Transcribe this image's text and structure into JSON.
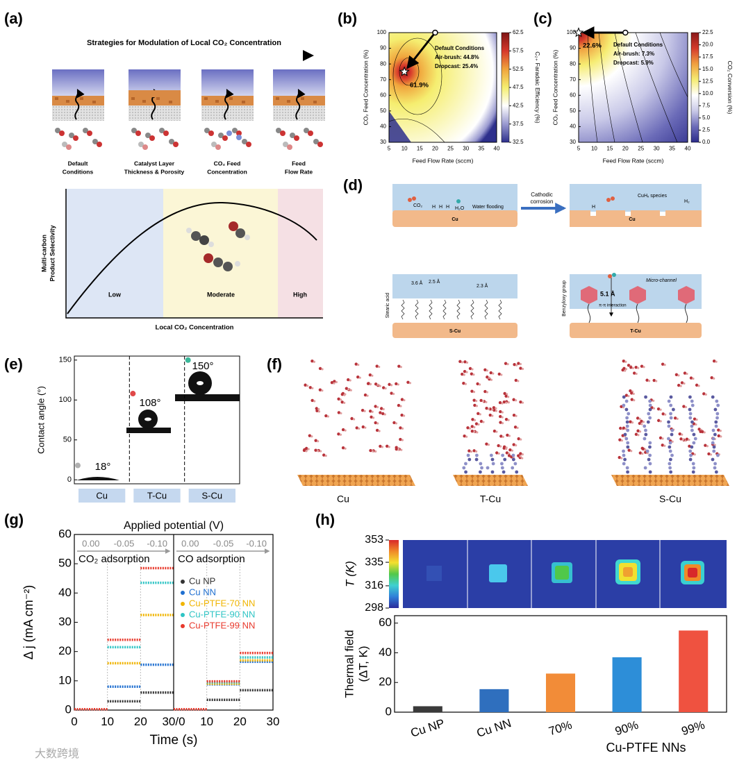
{
  "figure": {
    "panel_labels": [
      "(a)",
      "(b)",
      "(c)",
      "(d)",
      "(e)",
      "(f)",
      "(g)",
      "(h)"
    ],
    "a": {
      "title": "Strategies for Modulation of Local CO₂ Concentration",
      "strategies": [
        [
          "Default",
          "Conditions"
        ],
        [
          "Catalyst Layer",
          "Thickness & Porosity"
        ],
        [
          "CO₂ Feed",
          "Concentration"
        ],
        [
          "Feed",
          "Flow Rate"
        ]
      ],
      "ylabel": [
        "Multi-carbon",
        "Product Selectivity"
      ],
      "xlabel": "Local CO₂ Concentration",
      "regions": [
        "Low",
        "Moderate",
        "High"
      ]
    },
    "d": {
      "co2": "CO₂",
      "h2o": "H₂O",
      "h": "H",
      "water_flooding": "Water flooding",
      "cu": "Cu",
      "cathodic_corrosion": [
        "Cathodic",
        "corrosion"
      ],
      "cuhx": "CuHₓ species",
      "h2": "H₂",
      "d1": "3.6 Å",
      "d2": "2.5 Å",
      "d3": "2.3 Å",
      "stearic_acid": "Stearic acid",
      "s_cu": "S-Cu",
      "benzyloxy": "Benzyloxy group",
      "d4": "5.1 Å",
      "pi": "π-π interaction",
      "micro": "Micro-channel",
      "t_cu": "T-Cu"
    },
    "f": {
      "labels": [
        "Cu",
        "T-Cu",
        "S-Cu"
      ]
    },
    "watermark": "大数跨境"
  },
  "chart_data": [
    {
      "type": "contour",
      "xlabel": "Feed Flow Rate (sccm)",
      "ylabel": "CO₂ Feed Concentration (%)",
      "xlim": [
        5,
        40
      ],
      "xticks": [
        5,
        10,
        15,
        20,
        25,
        30,
        35,
        40
      ],
      "ylim": [
        30,
        100
      ],
      "yticks": [
        30,
        40,
        50,
        60,
        70,
        80,
        90,
        100
      ],
      "colorbar_label": "C₂₊ Faradaic Efficiency (%)",
      "clim": [
        32.5,
        62.5
      ],
      "cticks": [
        32.5,
        37.5,
        42.5,
        47.5,
        52.5,
        57.5,
        62.5
      ],
      "colors": [
        "#2d2f8c",
        "#9a9ad0",
        "#ffffff",
        "#f5ee70",
        "#f0a43c",
        "#d6372b",
        "#7f1515"
      ],
      "annotation": [
        "Default Conditions",
        "Air-brush: 44.8%",
        "Dropcast: 25.4%"
      ],
      "default_point": {
        "x": 20,
        "y": 100
      },
      "optimum_point": {
        "x": 10,
        "y": 75,
        "label": "61.9%"
      }
    },
    {
      "type": "contour",
      "xlabel": "Feed Flow Rate (sccm)",
      "ylabel": "CO₂ Feed Concentration (%)",
      "xlim": [
        5,
        40
      ],
      "xticks": [
        5,
        10,
        15,
        20,
        25,
        30,
        35,
        40
      ],
      "ylim": [
        30,
        100
      ],
      "yticks": [
        30,
        40,
        50,
        60,
        70,
        80,
        90,
        100
      ],
      "colorbar_label": "CO₂ Conversion (%)",
      "clim": [
        0,
        22.5
      ],
      "cticks": [
        {
          "value": 0,
          "label": "0.0"
        },
        2.5,
        {
          "value": 5,
          "label": "5.0"
        },
        7.5,
        {
          "value": 10,
          "label": "10.0"
        },
        12.5,
        {
          "value": 15,
          "label": "15.0"
        },
        17.5,
        {
          "value": 20,
          "label": "20.0"
        },
        22.5
      ],
      "colors": [
        "#2c2c8a",
        "#6b6bb8",
        "#c9c9e8",
        "#ffffff",
        "#f6ec72",
        "#f0a040",
        "#d43a2b",
        "#8a1a1a"
      ],
      "annotation": [
        "Default Conditions",
        "Air-brush: 7.3%",
        "Dropcast: 5.9%"
      ],
      "default_point": {
        "x": 20,
        "y": 100
      },
      "optimum_point": {
        "x": 5,
        "y": 100,
        "label": "22.6%"
      }
    },
    {
      "type": "dot",
      "ylabel": "Contact angle (°)",
      "categories": [
        "Cu",
        "T-Cu",
        "S-Cu"
      ],
      "values": [
        18,
        108,
        150
      ],
      "value_labels": [
        "18°",
        "108°",
        "150°"
      ],
      "colors": [
        "#b0b0b0",
        "#e04848",
        "#3bb89a"
      ],
      "ylim": [
        -5,
        155
      ],
      "yticks": [
        0,
        50,
        100,
        150
      ]
    },
    {
      "type": "step",
      "title": "Applied potential (V)",
      "potentials": [
        "0.00",
        "-0.05",
        "-0.10"
      ],
      "xlabel": "Time (s)",
      "ylabel": "Δ j (mA cm⁻²)",
      "ylim": [
        0,
        60
      ],
      "yticks": [
        0,
        10,
        20,
        30,
        40,
        50,
        60
      ],
      "bins": [
        0,
        10,
        20,
        30
      ],
      "legend": "center right",
      "series": [
        {
          "name": "Cu NP",
          "color": "#333333"
        },
        {
          "name": "Cu NN",
          "color": "#1f6fd0"
        },
        {
          "name": "Cu-PTFE-70 NN",
          "color": "#f0b400"
        },
        {
          "name": "Cu-PTFE-90 NN",
          "color": "#2ec4c4"
        },
        {
          "name": "Cu-PTFE-99 NN",
          "color": "#e8392c"
        }
      ],
      "panels": [
        {
          "title": "CO₂ adsorption",
          "xlim": [
            0,
            30
          ],
          "xticks": [
            0,
            10,
            20,
            {
              "value": 30,
              "label": "30/0"
            }
          ],
          "values": [
            [
              0.3,
              3,
              6
            ],
            [
              0.3,
              8,
              15.5
            ],
            [
              0.3,
              16,
              32.5
            ],
            [
              0.3,
              21.5,
              43.5
            ],
            [
              0.3,
              24,
              48.5
            ]
          ]
        },
        {
          "title": "CO adsorption",
          "xlim": [
            0,
            30
          ],
          "xticks": [
            10,
            20,
            30
          ],
          "values": [
            [
              0.3,
              3.5,
              6.8
            ],
            [
              0.3,
              8.8,
              16.5
            ],
            [
              0.3,
              9,
              17
            ],
            [
              0.3,
              9.5,
              18
            ],
            [
              0.3,
              9.8,
              19.5
            ]
          ]
        }
      ]
    },
    {
      "type": "bar",
      "categories": [
        "Cu NP",
        "Cu NN",
        "70%",
        "90%",
        "99%"
      ],
      "group_label": "Cu-PTFE NNs",
      "values": [
        4,
        15.5,
        26,
        37,
        55
      ],
      "colors": [
        "#3a3a3a",
        "#2f6fbe",
        "#f28c38",
        "#2d8ed8",
        "#ef5240"
      ],
      "ylabel": [
        "Thermal field",
        "(ΔT, K)"
      ],
      "ylim": [
        0,
        65
      ],
      "yticks": [
        0,
        20,
        40,
        60
      ],
      "colorbar_label": "T (K)",
      "clim": [
        298,
        353
      ],
      "cticks": [
        298,
        316,
        335,
        353
      ],
      "thermal_colors": [
        "#2a2a9a",
        "#2f7fd8",
        "#3fd0d0",
        "#52c84a",
        "#f2e030",
        "#f08a28",
        "#d8282a"
      ]
    }
  ]
}
